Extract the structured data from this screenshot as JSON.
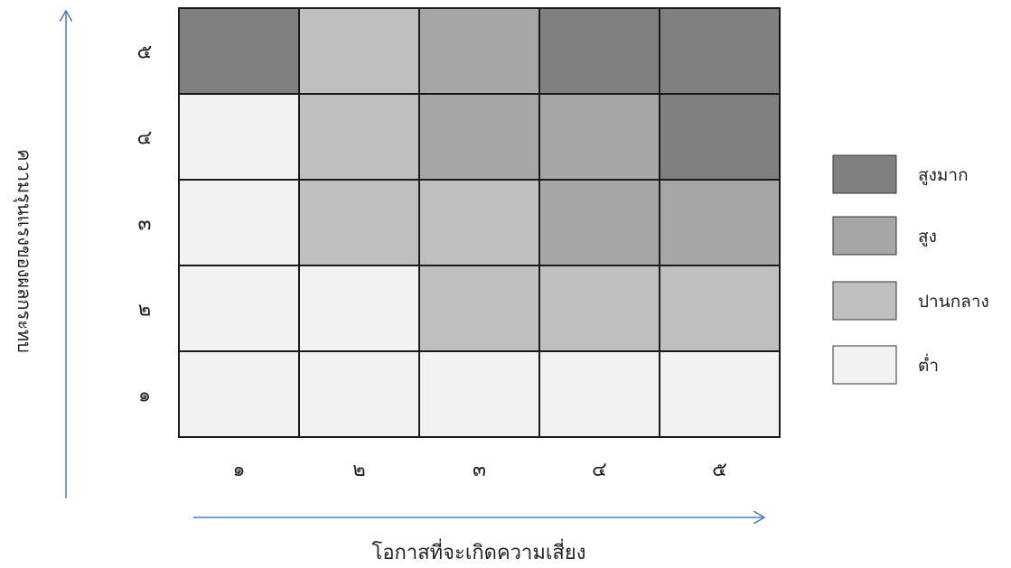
{
  "chart_data": {
    "type": "heatmap",
    "xlabel": "โอกาสที่จะเกิดความเสี่ยง",
    "ylabel": "ความรุนแรงของผลกระทบ",
    "x_ticks": [
      "๑",
      "๒",
      "๓",
      "๔",
      "๕"
    ],
    "y_ticks": [
      "๑",
      "๒",
      "๓",
      "๔",
      "๕"
    ],
    "levels": [
      {
        "name": "สูงมาก",
        "color": "#808080"
      },
      {
        "name": "สูง",
        "color": "#a6a6a6"
      },
      {
        "name": "ปานกลาง",
        "color": "#bfbfbf"
      },
      {
        "name": "ต่ำ",
        "color": "#f2f2f2"
      }
    ],
    "grid": [
      [
        "ต่ำ",
        "ต่ำ",
        "ต่ำ",
        "ต่ำ",
        "ต่ำ"
      ],
      [
        "ต่ำ",
        "ต่ำ",
        "ปานกลาง",
        "ปานกลาง",
        "ปานกลาง"
      ],
      [
        "ต่ำ",
        "ปานกลาง",
        "ปานกลาง",
        "สูง",
        "สูง"
      ],
      [
        "ต่ำ",
        "ปานกลาง",
        "สูง",
        "สูง",
        "สูงมาก"
      ],
      [
        "สูงมาก",
        "ปานกลาง",
        "สูง",
        "สูงมาก",
        "สูงมาก"
      ]
    ],
    "legend_position": "right"
  }
}
